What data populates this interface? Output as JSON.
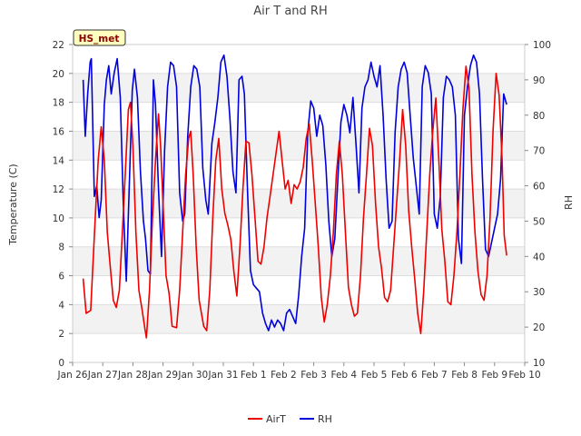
{
  "chart_data": {
    "type": "line",
    "title": "Air T and RH",
    "station_badge": "HS_met",
    "x_ticks": [
      "Jan 26",
      "Jan 27",
      "Jan 28",
      "Jan 29",
      "Jan 30",
      "Jan 31",
      "Feb 1",
      "Feb 2",
      "Feb 3",
      "Feb 4",
      "Feb 5",
      "Feb 6",
      "Feb 7",
      "Feb 8",
      "Feb 9",
      "Feb 10"
    ],
    "xlim": [
      0,
      15
    ],
    "y_left": {
      "label": "Temperature (C)",
      "lim": [
        0,
        22
      ],
      "ticks": [
        0,
        2,
        4,
        6,
        8,
        10,
        12,
        14,
        16,
        18,
        20,
        22
      ]
    },
    "y_right": {
      "label": "RH",
      "lim": [
        10,
        100
      ],
      "ticks": [
        10,
        20,
        30,
        40,
        50,
        60,
        70,
        80,
        90,
        100
      ]
    },
    "grid": "horizontal bands",
    "legend_position": "bottom-center",
    "series": [
      {
        "name": "AirT",
        "axis": "left",
        "color": "#ee0000",
        "points": [
          [
            0.35,
            5.8
          ],
          [
            0.45,
            3.4
          ],
          [
            0.6,
            3.6
          ],
          [
            0.75,
            10
          ],
          [
            0.85,
            14
          ],
          [
            0.95,
            16.3
          ],
          [
            1.05,
            14
          ],
          [
            1.15,
            9
          ],
          [
            1.25,
            6.6
          ],
          [
            1.35,
            4.3
          ],
          [
            1.45,
            3.8
          ],
          [
            1.55,
            5
          ],
          [
            1.7,
            11
          ],
          [
            1.85,
            17.5
          ],
          [
            1.92,
            18
          ],
          [
            2.0,
            15
          ],
          [
            2.1,
            9
          ],
          [
            2.2,
            5
          ],
          [
            2.3,
            3.7
          ],
          [
            2.4,
            2.3
          ],
          [
            2.45,
            1.7
          ],
          [
            2.55,
            5
          ],
          [
            2.65,
            10
          ],
          [
            2.75,
            14
          ],
          [
            2.85,
            17.2
          ],
          [
            2.92,
            15
          ],
          [
            3.0,
            11
          ],
          [
            3.1,
            6
          ],
          [
            3.2,
            4.8
          ],
          [
            3.3,
            2.5
          ],
          [
            3.45,
            2.4
          ],
          [
            3.55,
            5
          ],
          [
            3.65,
            9
          ],
          [
            3.75,
            13
          ],
          [
            3.85,
            15.5
          ],
          [
            3.92,
            16
          ],
          [
            4.0,
            13
          ],
          [
            4.1,
            8
          ],
          [
            4.2,
            4.3
          ],
          [
            4.35,
            2.5
          ],
          [
            4.45,
            2.2
          ],
          [
            4.55,
            5
          ],
          [
            4.65,
            10
          ],
          [
            4.75,
            14
          ],
          [
            4.85,
            15.5
          ],
          [
            4.95,
            12
          ],
          [
            5.05,
            10.3
          ],
          [
            5.15,
            9.5
          ],
          [
            5.25,
            8.5
          ],
          [
            5.35,
            6.3
          ],
          [
            5.45,
            4.6
          ],
          [
            5.55,
            8
          ],
          [
            5.65,
            12
          ],
          [
            5.75,
            15.3
          ],
          [
            5.85,
            15.2
          ],
          [
            5.95,
            13
          ],
          [
            6.05,
            10
          ],
          [
            6.15,
            7
          ],
          [
            6.25,
            6.8
          ],
          [
            6.35,
            8
          ],
          [
            6.45,
            10
          ],
          [
            6.55,
            11.5
          ],
          [
            6.65,
            13
          ],
          [
            6.75,
            14.5
          ],
          [
            6.85,
            16
          ],
          [
            6.95,
            14
          ],
          [
            7.05,
            12
          ],
          [
            7.15,
            12.6
          ],
          [
            7.25,
            11
          ],
          [
            7.35,
            12.3
          ],
          [
            7.45,
            12
          ],
          [
            7.55,
            12.5
          ],
          [
            7.65,
            13.5
          ],
          [
            7.75,
            15.5
          ],
          [
            7.85,
            16.5
          ],
          [
            7.95,
            14
          ],
          [
            8.05,
            11
          ],
          [
            8.15,
            8
          ],
          [
            8.25,
            4.5
          ],
          [
            8.35,
            2.8
          ],
          [
            8.45,
            4
          ],
          [
            8.55,
            6
          ],
          [
            8.65,
            9
          ],
          [
            8.75,
            13
          ],
          [
            8.85,
            15.3
          ],
          [
            8.95,
            13
          ],
          [
            9.05,
            9
          ],
          [
            9.15,
            5.2
          ],
          [
            9.25,
            4
          ],
          [
            9.35,
            3.2
          ],
          [
            9.45,
            3.4
          ],
          [
            9.55,
            6
          ],
          [
            9.65,
            10
          ],
          [
            9.75,
            13
          ],
          [
            9.85,
            16.2
          ],
          [
            9.95,
            15
          ],
          [
            10.05,
            11
          ],
          [
            10.15,
            8
          ],
          [
            10.25,
            6.5
          ],
          [
            10.35,
            4.5
          ],
          [
            10.45,
            4.2
          ],
          [
            10.55,
            5
          ],
          [
            10.65,
            8
          ],
          [
            10.75,
            11
          ],
          [
            10.85,
            14
          ],
          [
            10.95,
            17.5
          ],
          [
            11.05,
            15
          ],
          [
            11.15,
            10.5
          ],
          [
            11.25,
            8
          ],
          [
            11.35,
            5.8
          ],
          [
            11.45,
            3.4
          ],
          [
            11.55,
            2
          ],
          [
            11.65,
            5
          ],
          [
            11.75,
            9
          ],
          [
            11.85,
            13
          ],
          [
            11.95,
            16
          ],
          [
            12.05,
            18.3
          ],
          [
            12.15,
            14
          ],
          [
            12.25,
            9.2
          ],
          [
            12.35,
            7
          ],
          [
            12.45,
            4.2
          ],
          [
            12.55,
            4
          ],
          [
            12.65,
            6
          ],
          [
            12.75,
            9
          ],
          [
            12.85,
            13
          ],
          [
            12.95,
            17.5
          ],
          [
            13.05,
            20.5
          ],
          [
            13.15,
            19
          ],
          [
            13.25,
            13
          ],
          [
            13.35,
            9
          ],
          [
            13.45,
            6.3
          ],
          [
            13.55,
            4.7
          ],
          [
            13.65,
            4.3
          ],
          [
            13.75,
            6
          ],
          [
            13.85,
            10
          ],
          [
            13.95,
            16
          ],
          [
            14.05,
            20
          ],
          [
            14.15,
            18.5
          ],
          [
            14.25,
            14
          ],
          [
            14.32,
            8.8
          ],
          [
            14.4,
            7.4
          ]
        ]
      },
      {
        "name": "RH",
        "axis": "right",
        "color": "#0000dd",
        "points": [
          [
            0.35,
            90
          ],
          [
            0.42,
            74
          ],
          [
            0.5,
            86
          ],
          [
            0.58,
            95
          ],
          [
            0.62,
            96
          ],
          [
            0.72,
            57
          ],
          [
            0.8,
            60
          ],
          [
            0.88,
            51
          ],
          [
            0.95,
            56
          ],
          [
            1.05,
            83
          ],
          [
            1.12,
            90
          ],
          [
            1.2,
            94
          ],
          [
            1.28,
            86
          ],
          [
            1.38,
            92
          ],
          [
            1.48,
            96
          ],
          [
            1.58,
            85
          ],
          [
            1.68,
            55
          ],
          [
            1.78,
            33
          ],
          [
            1.88,
            60
          ],
          [
            1.98,
            87
          ],
          [
            2.05,
            93
          ],
          [
            2.15,
            85
          ],
          [
            2.25,
            64
          ],
          [
            2.35,
            50
          ],
          [
            2.42,
            45
          ],
          [
            2.5,
            36
          ],
          [
            2.58,
            35
          ],
          [
            2.68,
            90
          ],
          [
            2.75,
            83
          ],
          [
            2.85,
            59
          ],
          [
            2.95,
            40
          ],
          [
            3.05,
            70
          ],
          [
            3.15,
            88
          ],
          [
            3.25,
            95
          ],
          [
            3.35,
            94
          ],
          [
            3.45,
            88
          ],
          [
            3.55,
            58
          ],
          [
            3.65,
            50
          ],
          [
            3.72,
            52
          ],
          [
            3.82,
            74
          ],
          [
            3.92,
            88
          ],
          [
            4.02,
            94
          ],
          [
            4.12,
            93
          ],
          [
            4.22,
            88
          ],
          [
            4.32,
            65
          ],
          [
            4.42,
            56
          ],
          [
            4.5,
            52
          ],
          [
            4.62,
            72
          ],
          [
            4.72,
            78
          ],
          [
            4.82,
            85
          ],
          [
            4.92,
            95
          ],
          [
            5.02,
            97
          ],
          [
            5.12,
            91
          ],
          [
            5.22,
            79
          ],
          [
            5.32,
            64
          ],
          [
            5.42,
            58
          ],
          [
            5.52,
            90
          ],
          [
            5.62,
            91
          ],
          [
            5.7,
            86
          ],
          [
            5.8,
            59
          ],
          [
            5.9,
            36
          ],
          [
            6.0,
            32
          ],
          [
            6.1,
            31
          ],
          [
            6.2,
            30
          ],
          [
            6.3,
            24
          ],
          [
            6.4,
            21
          ],
          [
            6.5,
            19
          ],
          [
            6.6,
            22
          ],
          [
            6.7,
            20
          ],
          [
            6.8,
            22
          ],
          [
            6.9,
            21
          ],
          [
            7.0,
            19
          ],
          [
            7.1,
            24
          ],
          [
            7.2,
            25
          ],
          [
            7.3,
            23
          ],
          [
            7.4,
            21
          ],
          [
            7.5,
            29
          ],
          [
            7.6,
            40
          ],
          [
            7.7,
            48
          ],
          [
            7.8,
            75
          ],
          [
            7.9,
            84
          ],
          [
            8.0,
            82
          ],
          [
            8.1,
            74
          ],
          [
            8.2,
            80
          ],
          [
            8.3,
            77
          ],
          [
            8.4,
            66
          ],
          [
            8.5,
            50
          ],
          [
            8.6,
            40
          ],
          [
            8.7,
            45
          ],
          [
            8.8,
            62
          ],
          [
            8.9,
            78
          ],
          [
            9.0,
            83
          ],
          [
            9.1,
            80
          ],
          [
            9.2,
            75
          ],
          [
            9.3,
            85
          ],
          [
            9.4,
            72
          ],
          [
            9.5,
            58
          ],
          [
            9.6,
            82
          ],
          [
            9.7,
            88
          ],
          [
            9.8,
            90
          ],
          [
            9.9,
            95
          ],
          [
            10.0,
            91
          ],
          [
            10.1,
            88
          ],
          [
            10.2,
            94
          ],
          [
            10.3,
            80
          ],
          [
            10.4,
            62
          ],
          [
            10.5,
            48
          ],
          [
            10.6,
            50
          ],
          [
            10.7,
            75
          ],
          [
            10.8,
            88
          ],
          [
            10.9,
            93
          ],
          [
            11.0,
            95
          ],
          [
            11.1,
            92
          ],
          [
            11.2,
            80
          ],
          [
            11.3,
            68
          ],
          [
            11.4,
            60
          ],
          [
            11.5,
            52
          ],
          [
            11.6,
            88
          ],
          [
            11.7,
            94
          ],
          [
            11.8,
            92
          ],
          [
            11.9,
            86
          ],
          [
            12.0,
            52
          ],
          [
            12.1,
            48
          ],
          [
            12.2,
            57
          ],
          [
            12.3,
            85
          ],
          [
            12.4,
            91
          ],
          [
            12.5,
            90
          ],
          [
            12.6,
            88
          ],
          [
            12.7,
            80
          ],
          [
            12.8,
            45
          ],
          [
            12.9,
            38
          ],
          [
            13.0,
            80
          ],
          [
            13.1,
            88
          ],
          [
            13.2,
            94
          ],
          [
            13.3,
            97
          ],
          [
            13.4,
            95
          ],
          [
            13.5,
            86
          ],
          [
            13.6,
            62
          ],
          [
            13.7,
            42
          ],
          [
            13.8,
            40
          ],
          [
            13.9,
            44
          ],
          [
            14.0,
            48
          ],
          [
            14.1,
            52
          ],
          [
            14.2,
            62
          ],
          [
            14.3,
            86
          ],
          [
            14.4,
            83
          ]
        ]
      }
    ]
  }
}
